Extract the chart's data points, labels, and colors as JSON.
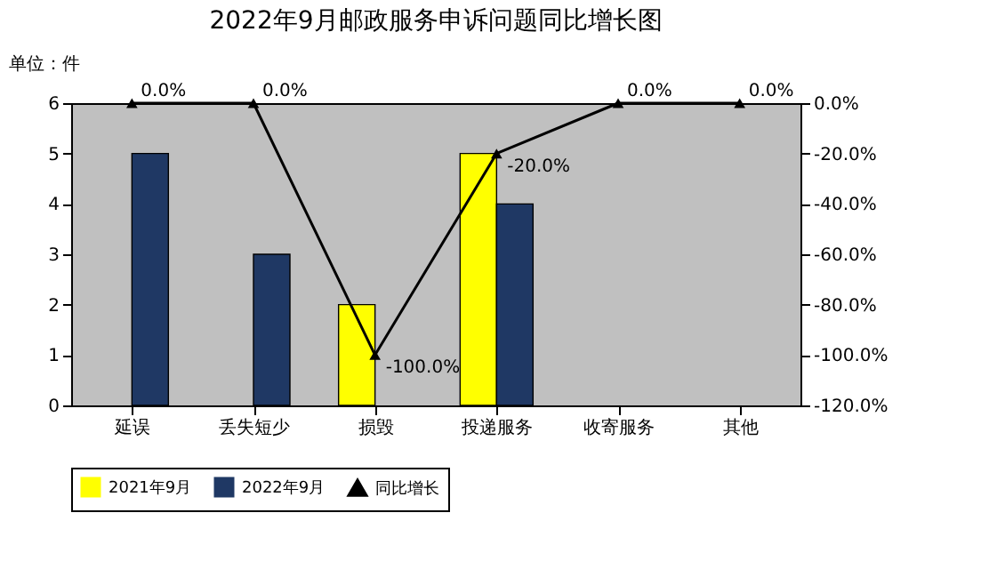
{
  "chart_data": {
    "type": "bar",
    "title": "2022年9月邮政服务申诉问题同比增长图",
    "annotations": [
      "单位：件"
    ],
    "categories": [
      "延误",
      "丢失短少",
      "损毁",
      "投递服务",
      "收寄服务",
      "其他"
    ],
    "series": [
      {
        "name": "2021年9月",
        "type": "bar",
        "color": "#ffff00",
        "values": [
          0,
          0,
          2,
          5,
          0,
          0
        ]
      },
      {
        "name": "2022年9月",
        "type": "bar",
        "color": "#1f3864",
        "values": [
          5,
          3,
          0,
          4,
          0,
          0
        ]
      },
      {
        "name": "同比增长",
        "type": "line",
        "axis": "y2",
        "color": "#000000",
        "values": [
          0,
          0,
          -100,
          -20,
          0,
          0
        ],
        "value_labels": [
          "0.0%",
          "0.0%",
          "-100.0%",
          "-20.0%",
          "0.0%",
          "0.0%"
        ]
      }
    ],
    "ylim": [
      0,
      6
    ],
    "yticks": [
      0,
      1,
      2,
      3,
      4,
      5,
      6
    ],
    "y2lim": [
      -120,
      0
    ],
    "y2ticks": [
      {
        "value": -120,
        "label": "-120.0%"
      },
      {
        "value": -100,
        "label": "-100.0%"
      },
      {
        "value": -80,
        "label": "-80.0%"
      },
      {
        "value": -60,
        "label": "-60.0%"
      },
      {
        "value": -40,
        "label": "-40.0%"
      },
      {
        "value": -20,
        "label": "-20.0%"
      },
      {
        "value": 0,
        "label": "0.0%"
      }
    ],
    "marker": "triangle",
    "line_style": "solid",
    "legend": "bottom"
  }
}
